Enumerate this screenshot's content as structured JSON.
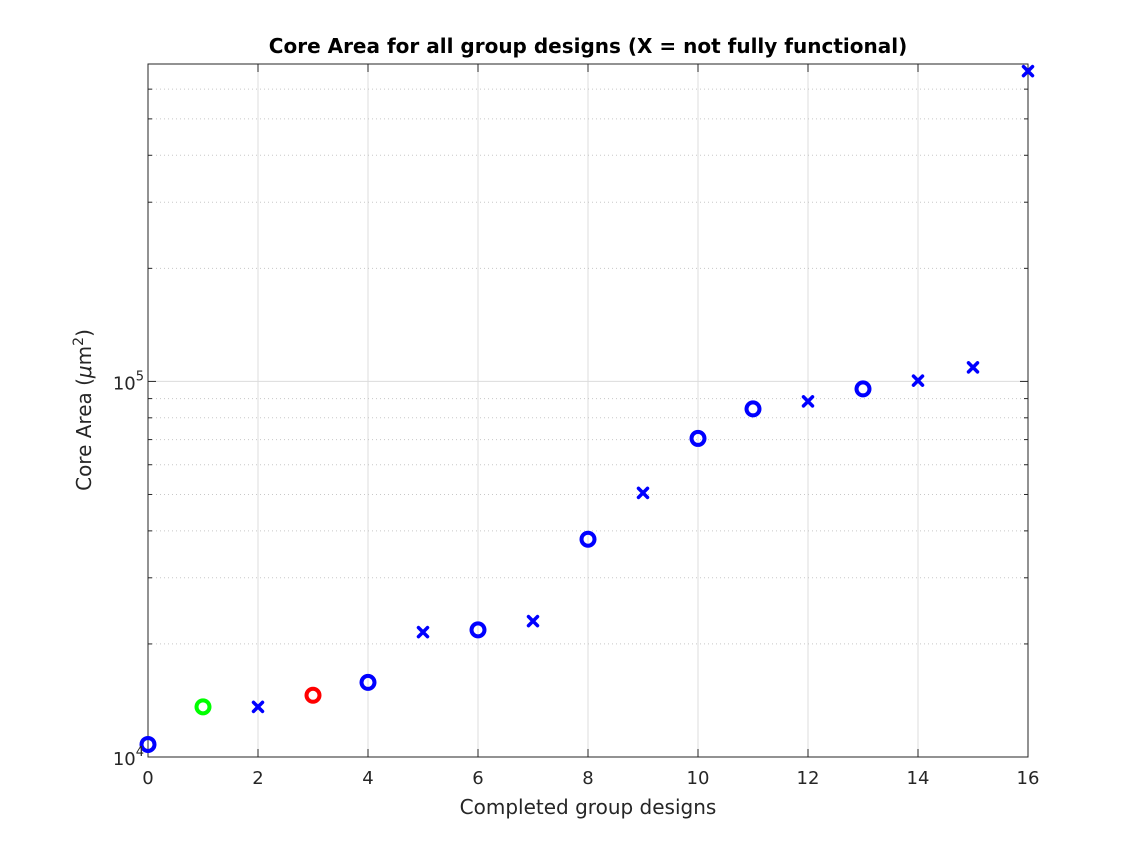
{
  "chart_data": {
    "type": "scatter",
    "title": "Core Area for all group designs (X = not fully functional)",
    "xlabel": "Completed group designs",
    "ylabel_prefix": "Core Area (",
    "ylabel_mu": "μ",
    "ylabel_unit": "m",
    "ylabel_sup": "2",
    "ylabel_suffix": ")",
    "xlim": [
      0,
      16
    ],
    "ylim": [
      10000,
      700000
    ],
    "yscale": "log",
    "grid": true,
    "x_ticks": [
      "0",
      "2",
      "4",
      "6",
      "8",
      "10",
      "12",
      "14",
      "16"
    ],
    "y_ticks": [
      {
        "base": "10",
        "exp": "4",
        "value": 10000
      },
      {
        "base": "10",
        "exp": "5",
        "value": 100000
      }
    ],
    "colors": {
      "blue": "#0000ff",
      "green": "#00ff00",
      "red": "#ff0000",
      "axis": "#262626"
    },
    "points": [
      {
        "x": 0,
        "y": 10800,
        "marker": "o",
        "color": "#0000ff"
      },
      {
        "x": 1,
        "y": 13600,
        "marker": "o",
        "color": "#00ff00"
      },
      {
        "x": 2,
        "y": 13600,
        "marker": "x",
        "color": "#0000ff"
      },
      {
        "x": 3,
        "y": 14600,
        "marker": "o",
        "color": "#ff0000"
      },
      {
        "x": 4,
        "y": 15800,
        "marker": "o",
        "color": "#0000ff"
      },
      {
        "x": 5,
        "y": 21500,
        "marker": "x",
        "color": "#0000ff"
      },
      {
        "x": 6,
        "y": 21800,
        "marker": "o",
        "color": "#0000ff"
      },
      {
        "x": 7,
        "y": 23000,
        "marker": "x",
        "color": "#0000ff"
      },
      {
        "x": 8,
        "y": 38000,
        "marker": "o",
        "color": "#0000ff"
      },
      {
        "x": 9,
        "y": 50500,
        "marker": "x",
        "color": "#0000ff"
      },
      {
        "x": 10,
        "y": 70500,
        "marker": "o",
        "color": "#0000ff"
      },
      {
        "x": 11,
        "y": 84500,
        "marker": "o",
        "color": "#0000ff"
      },
      {
        "x": 12,
        "y": 88500,
        "marker": "x",
        "color": "#0000ff"
      },
      {
        "x": 13,
        "y": 95500,
        "marker": "o",
        "color": "#0000ff"
      },
      {
        "x": 14,
        "y": 100500,
        "marker": "x",
        "color": "#0000ff"
      },
      {
        "x": 15,
        "y": 109000,
        "marker": "x",
        "color": "#0000ff"
      },
      {
        "x": 16,
        "y": 670000,
        "marker": "x",
        "color": "#0000ff"
      }
    ]
  }
}
